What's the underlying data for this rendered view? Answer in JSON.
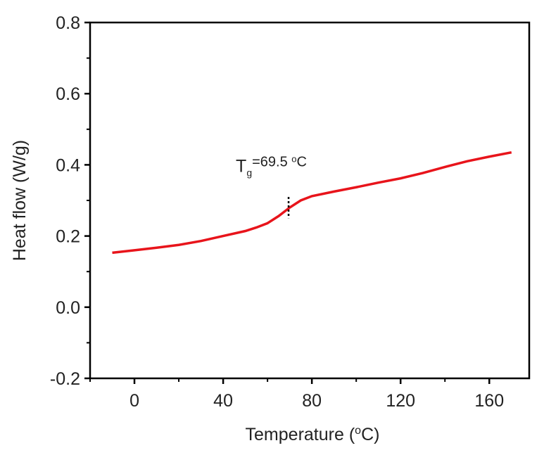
{
  "chart_data": {
    "type": "line",
    "x_label": {
      "text": "Temperature (",
      "sup": "o",
      "tail": "C)"
    },
    "y_label": "Heat flow (W/g)",
    "annotation": {
      "text": "T",
      "sub": "g",
      "rest": "=69.5 ",
      "sup": "o",
      "tail": "C",
      "x": 69.5
    },
    "x": [
      -10,
      0,
      10,
      20,
      30,
      40,
      50,
      55,
      60,
      65,
      70,
      75,
      80,
      90,
      100,
      110,
      120,
      130,
      140,
      150,
      160,
      170
    ],
    "series": [
      {
        "color": "#e8141b",
        "values": [
          0.153,
          0.16,
          0.167,
          0.175,
          0.186,
          0.2,
          0.214,
          0.224,
          0.236,
          0.256,
          0.28,
          0.3,
          0.312,
          0.325,
          0.337,
          0.35,
          0.362,
          0.377,
          0.394,
          0.41,
          0.423,
          0.435
        ]
      }
    ],
    "xlim": [
      -20,
      178
    ],
    "ylim": [
      -0.2,
      0.8
    ],
    "xticks": [
      0,
      40,
      80,
      120,
      160
    ],
    "yticks": [
      {
        "value": -0.2,
        "label": "-0.2"
      },
      {
        "value": 0,
        "label": "0.0"
      },
      0.2,
      0.4,
      0.6,
      0.8
    ],
    "grid": false
  }
}
